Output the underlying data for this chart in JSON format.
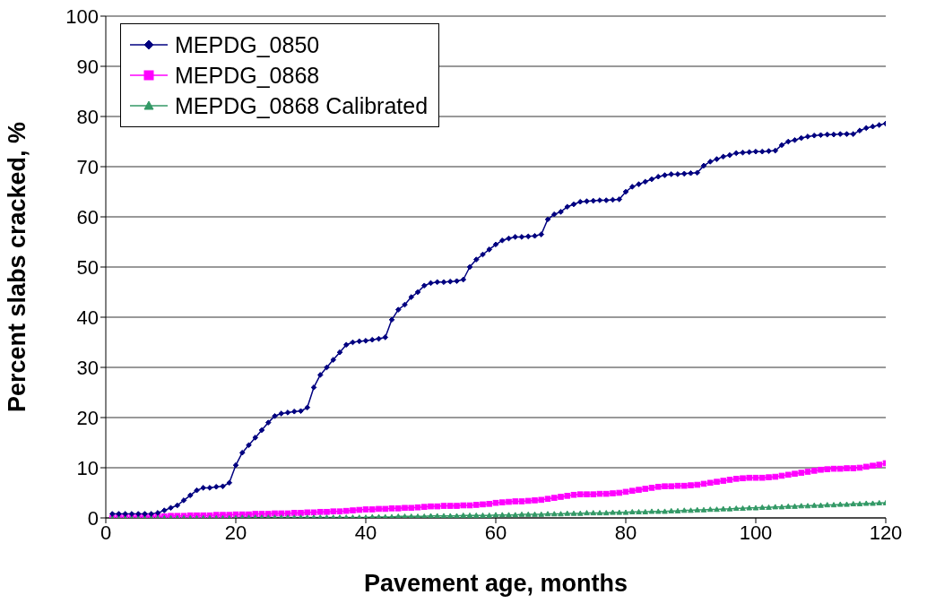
{
  "chart_data": {
    "type": "line",
    "xlabel": "Pavement age, months",
    "ylabel": "Percent slabs cracked, %",
    "xlim": [
      0,
      120
    ],
    "xticks": [
      0,
      20,
      40,
      60,
      80,
      100,
      120
    ],
    "ylim": [
      0,
      100
    ],
    "yticks": [
      0,
      10,
      20,
      30,
      40,
      50,
      60,
      70,
      80,
      90,
      100
    ],
    "grid": "y",
    "legend": "top left",
    "line_style": "solid",
    "x": [
      1,
      2,
      3,
      4,
      5,
      6,
      7,
      8,
      9,
      10,
      11,
      12,
      13,
      14,
      15,
      16,
      17,
      18,
      19,
      20,
      21,
      22,
      23,
      24,
      25,
      26,
      27,
      28,
      29,
      30,
      31,
      32,
      33,
      34,
      35,
      36,
      37,
      38,
      39,
      40,
      41,
      42,
      43,
      44,
      45,
      46,
      47,
      48,
      49,
      50,
      51,
      52,
      53,
      54,
      55,
      56,
      57,
      58,
      59,
      60,
      61,
      62,
      63,
      64,
      65,
      66,
      67,
      68,
      69,
      70,
      71,
      72,
      73,
      74,
      75,
      76,
      77,
      78,
      79,
      80,
      81,
      82,
      83,
      84,
      85,
      86,
      87,
      88,
      89,
      90,
      91,
      92,
      93,
      94,
      95,
      96,
      97,
      98,
      99,
      100,
      101,
      102,
      103,
      104,
      105,
      106,
      107,
      108,
      109,
      110,
      111,
      112,
      113,
      114,
      115,
      116,
      117,
      118,
      119,
      120
    ],
    "series": [
      {
        "name": "MEPDG_0850",
        "color": "#000080",
        "marker": "diamond",
        "values": [
          0.8,
          0.8,
          0.8,
          0.8,
          0.8,
          0.8,
          0.8,
          1,
          1.5,
          2,
          2.5,
          3.5,
          4.5,
          5.5,
          6,
          6,
          6.2,
          6.3,
          7,
          10.5,
          13,
          14.5,
          16,
          17.5,
          19,
          20.3,
          20.8,
          21,
          21.2,
          21.3,
          22,
          26,
          28.5,
          30,
          31.5,
          33,
          34.5,
          35,
          35.2,
          35.3,
          35.5,
          35.7,
          36,
          39.5,
          41.5,
          42.5,
          44,
          45,
          46.3,
          46.8,
          47,
          47,
          47.1,
          47.2,
          47.5,
          50,
          51.5,
          52.5,
          53.5,
          54.5,
          55.3,
          55.7,
          56,
          56,
          56.1,
          56.2,
          56.5,
          59.5,
          60.5,
          61,
          62,
          62.5,
          63,
          63.1,
          63.2,
          63.3,
          63.3,
          63.4,
          63.5,
          65,
          66,
          66.5,
          67,
          67.5,
          68,
          68.3,
          68.5,
          68.5,
          68.6,
          68.7,
          68.8,
          70.2,
          71,
          71.5,
          72,
          72.3,
          72.7,
          72.8,
          72.9,
          73,
          73,
          73.1,
          73.2,
          74.3,
          75,
          75.3,
          75.7,
          76,
          76.2,
          76.3,
          76.4,
          76.4,
          76.5,
          76.5,
          76.5,
          77.2,
          77.7,
          78,
          78.3,
          78.6
        ]
      },
      {
        "name": "MEPDG_0868",
        "color": "#ff00ff",
        "marker": "square",
        "values": [
          0,
          0.1,
          0.1,
          0.2,
          0.2,
          0.2,
          0.3,
          0.3,
          0.3,
          0.4,
          0.4,
          0.4,
          0.5,
          0.5,
          0.5,
          0.5,
          0.6,
          0.6,
          0.6,
          0.7,
          0.7,
          0.7,
          0.8,
          0.8,
          0.8,
          0.9,
          0.9,
          0.9,
          1,
          1,
          1.1,
          1.1,
          1.2,
          1.2,
          1.3,
          1.3,
          1.4,
          1.5,
          1.6,
          1.7,
          1.7,
          1.8,
          1.8,
          1.9,
          1.9,
          2,
          2,
          2.1,
          2.2,
          2.3,
          2.3,
          2.4,
          2.4,
          2.4,
          2.5,
          2.5,
          2.6,
          2.7,
          2.8,
          3,
          3.1,
          3.2,
          3.3,
          3.3,
          3.4,
          3.5,
          3.6,
          3.8,
          4,
          4.2,
          4.4,
          4.6,
          4.7,
          4.7,
          4.7,
          4.8,
          4.8,
          4.9,
          5,
          5.2,
          5.4,
          5.6,
          5.8,
          6,
          6.2,
          6.3,
          6.3,
          6.4,
          6.4,
          6.5,
          6.6,
          6.8,
          7,
          7.2,
          7.4,
          7.6,
          7.8,
          7.9,
          8,
          8,
          8,
          8.1,
          8.2,
          8.4,
          8.6,
          8.8,
          9,
          9.2,
          9.4,
          9.6,
          9.7,
          9.8,
          9.8,
          9.9,
          9.9,
          10,
          10.2,
          10.4,
          10.6,
          10.9
        ]
      },
      {
        "name": "MEPDG_0868 Calibrated",
        "color": "#339966",
        "marker": "triangle",
        "values": [
          0,
          0,
          0,
          0,
          0,
          0,
          0,
          0,
          0,
          0,
          0,
          0,
          0,
          0,
          0,
          0,
          0,
          0,
          0,
          0,
          0.1,
          0.1,
          0.1,
          0.1,
          0.1,
          0.1,
          0.1,
          0.1,
          0.1,
          0.1,
          0.1,
          0.1,
          0.1,
          0.1,
          0.1,
          0.1,
          0.1,
          0.1,
          0.1,
          0.1,
          0.2,
          0.2,
          0.2,
          0.2,
          0.3,
          0.3,
          0.3,
          0.3,
          0.3,
          0.4,
          0.4,
          0.4,
          0.4,
          0.4,
          0.5,
          0.5,
          0.5,
          0.5,
          0.5,
          0.6,
          0.6,
          0.6,
          0.6,
          0.7,
          0.7,
          0.7,
          0.7,
          0.8,
          0.8,
          0.8,
          0.9,
          0.9,
          0.9,
          1,
          1,
          1,
          1,
          1.1,
          1.1,
          1.1,
          1.2,
          1.2,
          1.2,
          1.3,
          1.3,
          1.3,
          1.4,
          1.4,
          1.5,
          1.5,
          1.6,
          1.6,
          1.7,
          1.7,
          1.8,
          1.8,
          1.9,
          1.9,
          2,
          2,
          2.1,
          2.1,
          2.2,
          2.2,
          2.3,
          2.3,
          2.4,
          2.4,
          2.5,
          2.5,
          2.6,
          2.6,
          2.7,
          2.7,
          2.8,
          2.8,
          2.9,
          2.9,
          3,
          3
        ]
      }
    ]
  }
}
